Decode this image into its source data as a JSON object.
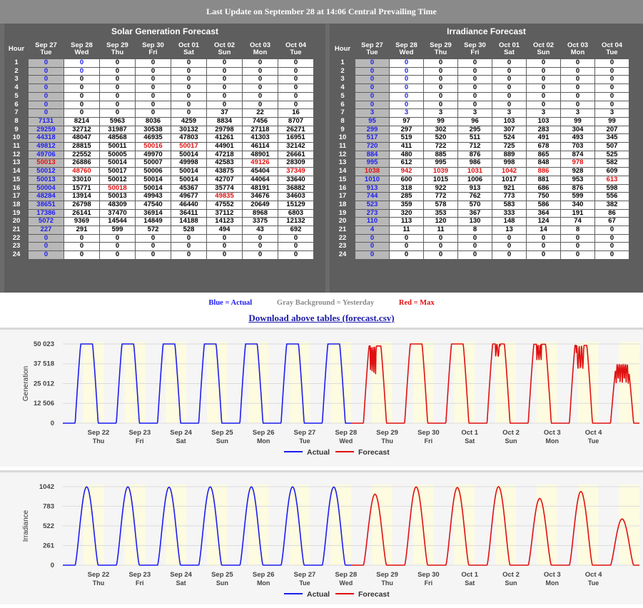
{
  "header": {
    "title": "Last Update on September 28 at 14:06 Central Prevailing Time"
  },
  "tables": {
    "generation": {
      "title": "Solar Generation Forecast",
      "hour_label": "Hour",
      "days": [
        {
          "date": "Sep 27",
          "dow": "Tue"
        },
        {
          "date": "Sep 28",
          "dow": "Wed"
        },
        {
          "date": "Sep 29",
          "dow": "Thu"
        },
        {
          "date": "Sep 30",
          "dow": "Fri"
        },
        {
          "date": "Oct 01",
          "dow": "Sat"
        },
        {
          "date": "Oct 02",
          "dow": "Sun"
        },
        {
          "date": "Oct 03",
          "dow": "Mon"
        },
        {
          "date": "Oct 04",
          "dow": "Tue"
        }
      ],
      "rows": [
        [
          "0",
          "0",
          "0",
          "0",
          "0",
          "0",
          "0",
          "0"
        ],
        [
          "0",
          "0",
          "0",
          "0",
          "0",
          "0",
          "0",
          "0"
        ],
        [
          "0",
          "0",
          "0",
          "0",
          "0",
          "0",
          "0",
          "0"
        ],
        [
          "0",
          "0",
          "0",
          "0",
          "0",
          "0",
          "0",
          "0"
        ],
        [
          "0",
          "0",
          "0",
          "0",
          "0",
          "0",
          "0",
          "0"
        ],
        [
          "0",
          "0",
          "0",
          "0",
          "0",
          "0",
          "0",
          "0"
        ],
        [
          "0",
          "0",
          "0",
          "0",
          "0",
          "37",
          "22",
          "16"
        ],
        [
          "7131",
          "8214",
          "5963",
          "8036",
          "4259",
          "8834",
          "7456",
          "8707"
        ],
        [
          "29259",
          "32712",
          "31987",
          "30538",
          "30132",
          "29798",
          "27118",
          "26271"
        ],
        [
          "44318",
          "48047",
          "48568",
          "46935",
          "47803",
          "41261",
          "41303",
          "16951"
        ],
        [
          "49812",
          "28815",
          "50011",
          "50016",
          "50017",
          "44901",
          "46114",
          "32142"
        ],
        [
          "49706",
          "22552",
          "50005",
          "49970",
          "50014",
          "47218",
          "48901",
          "26661"
        ],
        [
          "50013",
          "26886",
          "50014",
          "50007",
          "49998",
          "42583",
          "49126",
          "28309"
        ],
        [
          "50012",
          "48760",
          "50017",
          "50006",
          "50014",
          "43875",
          "45404",
          "37349"
        ],
        [
          "50013",
          "33010",
          "50012",
          "50014",
          "50014",
          "42707",
          "44064",
          "33640"
        ],
        [
          "50004",
          "15771",
          "50018",
          "50014",
          "45367",
          "35774",
          "48191",
          "36882"
        ],
        [
          "48284",
          "13914",
          "50013",
          "49943",
          "49677",
          "49835",
          "34676",
          "34603"
        ],
        [
          "38651",
          "26798",
          "48309",
          "47540",
          "46440",
          "47552",
          "20649",
          "15129"
        ],
        [
          "17386",
          "26141",
          "37470",
          "36914",
          "36411",
          "37112",
          "8968",
          "6803"
        ],
        [
          "5072",
          "9369",
          "14544",
          "14849",
          "14188",
          "14123",
          "3375",
          "12132"
        ],
        [
          "227",
          "291",
          "599",
          "572",
          "528",
          "494",
          "43",
          "692"
        ],
        [
          "0",
          "0",
          "0",
          "0",
          "0",
          "0",
          "0",
          "0"
        ],
        [
          "0",
          "0",
          "0",
          "0",
          "0",
          "0",
          "0",
          "0"
        ],
        [
          "0",
          "0",
          "0",
          "0",
          "0",
          "0",
          "0",
          "0"
        ]
      ],
      "actual_rows_day2": 2,
      "max_cells": [
        [
          12,
          0
        ],
        [
          13,
          1
        ],
        [
          15,
          2
        ],
        [
          10,
          3
        ],
        [
          10,
          4
        ],
        [
          16,
          5
        ],
        [
          12,
          6
        ],
        [
          13,
          7
        ]
      ]
    },
    "irradiance": {
      "title": "Irradiance Forecast",
      "hour_label": "Hour",
      "days": [
        {
          "date": "Sep 27",
          "dow": "Tue"
        },
        {
          "date": "Sep 28",
          "dow": "Wed"
        },
        {
          "date": "Sep 29",
          "dow": "Thu"
        },
        {
          "date": "Sep 30",
          "dow": "Fri"
        },
        {
          "date": "Oct 01",
          "dow": "Sat"
        },
        {
          "date": "Oct 02",
          "dow": "Sun"
        },
        {
          "date": "Oct 03",
          "dow": "Mon"
        },
        {
          "date": "Oct 04",
          "dow": "Tue"
        }
      ],
      "rows": [
        [
          "0",
          "0",
          "0",
          "0",
          "0",
          "0",
          "0",
          "0"
        ],
        [
          "0",
          "0",
          "0",
          "0",
          "0",
          "0",
          "0",
          "0"
        ],
        [
          "0",
          "0",
          "0",
          "0",
          "0",
          "0",
          "0",
          "0"
        ],
        [
          "0",
          "0",
          "0",
          "0",
          "0",
          "0",
          "0",
          "0"
        ],
        [
          "0",
          "0",
          "0",
          "0",
          "0",
          "0",
          "0",
          "0"
        ],
        [
          "0",
          "0",
          "0",
          "0",
          "0",
          "0",
          "0",
          "0"
        ],
        [
          "3",
          "3",
          "3",
          "3",
          "3",
          "3",
          "3",
          "3"
        ],
        [
          "95",
          "97",
          "99",
          "96",
          "103",
          "103",
          "99",
          "99"
        ],
        [
          "299",
          "297",
          "302",
          "295",
          "307",
          "283",
          "304",
          "207"
        ],
        [
          "517",
          "519",
          "520",
          "511",
          "524",
          "491",
          "493",
          "345"
        ],
        [
          "720",
          "411",
          "722",
          "712",
          "725",
          "678",
          "703",
          "507"
        ],
        [
          "884",
          "480",
          "885",
          "876",
          "889",
          "865",
          "874",
          "525"
        ],
        [
          "995",
          "612",
          "995",
          "986",
          "998",
          "848",
          "978",
          "582"
        ],
        [
          "1038",
          "942",
          "1039",
          "1031",
          "1042",
          "886",
          "928",
          "609"
        ],
        [
          "1010",
          "600",
          "1015",
          "1006",
          "1017",
          "881",
          "953",
          "613"
        ],
        [
          "913",
          "318",
          "922",
          "913",
          "921",
          "686",
          "876",
          "598"
        ],
        [
          "744",
          "285",
          "772",
          "762",
          "773",
          "750",
          "599",
          "556"
        ],
        [
          "523",
          "359",
          "578",
          "570",
          "583",
          "586",
          "340",
          "382"
        ],
        [
          "273",
          "320",
          "353",
          "367",
          "333",
          "364",
          "191",
          "86"
        ],
        [
          "110",
          "113",
          "120",
          "130",
          "148",
          "124",
          "74",
          "67"
        ],
        [
          "4",
          "11",
          "11",
          "8",
          "13",
          "14",
          "8",
          "0"
        ],
        [
          "0",
          "0",
          "0",
          "0",
          "0",
          "0",
          "0",
          "0"
        ],
        [
          "0",
          "0",
          "0",
          "0",
          "0",
          "0",
          "0",
          "0"
        ],
        [
          "0",
          "0",
          "0",
          "0",
          "0",
          "0",
          "0",
          "0"
        ]
      ],
      "actual_rows_day2": 7,
      "max_cells": [
        [
          13,
          0
        ],
        [
          13,
          1
        ],
        [
          13,
          2
        ],
        [
          13,
          3
        ],
        [
          13,
          4
        ],
        [
          13,
          5
        ],
        [
          12,
          6
        ],
        [
          14,
          7
        ]
      ]
    }
  },
  "legend": {
    "blue": "Blue = Actual",
    "gray": "Gray Background = Yesterday",
    "red": "Red = Max"
  },
  "download": {
    "label": "Download above tables (forecast.csv)"
  },
  "colors": {
    "actual": "#1d1df0",
    "forecast": "#e01010",
    "day_band": "#fdfbe0"
  },
  "chart_data": [
    {
      "type": "line",
      "ylabel": "Generation",
      "yticks": [
        0,
        12506,
        25012,
        37518,
        50023
      ],
      "ytick_labels": [
        "0",
        "12 506",
        "25 012",
        "37 518",
        "50 023"
      ],
      "ylim": [
        0,
        50023
      ],
      "x_ticks": [
        {
          "date": "Sep 22",
          "dow": "Thu"
        },
        {
          "date": "Sep 23",
          "dow": "Fri"
        },
        {
          "date": "Sep 24",
          "dow": "Sat"
        },
        {
          "date": "Sep 25",
          "dow": "Sun"
        },
        {
          "date": "Sep 26",
          "dow": "Mon"
        },
        {
          "date": "Sep 27",
          "dow": "Tue"
        },
        {
          "date": "Sep 28",
          "dow": "Wed"
        },
        {
          "date": "Sep 29",
          "dow": "Thu"
        },
        {
          "date": "Sep 30",
          "dow": "Fri"
        },
        {
          "date": "Oct 1",
          "dow": "Sat"
        },
        {
          "date": "Oct 2",
          "dow": "Sun"
        },
        {
          "date": "Oct 3",
          "dow": "Mon"
        },
        {
          "date": "Oct 4",
          "dow": "Tue"
        }
      ],
      "series": [
        {
          "name": "Actual",
          "daily_peaks": [
            50023,
            50023,
            50023,
            50023,
            50023,
            50023,
            50023
          ]
        },
        {
          "name": "Forecast",
          "daily_peaks": [
            48760,
            50018,
            50016,
            50017,
            49835,
            49126,
            37349
          ]
        }
      ]
    },
    {
      "type": "line",
      "ylabel": "Irradiance",
      "yticks": [
        0,
        261,
        522,
        783,
        1042
      ],
      "ytick_labels": [
        "0",
        "261",
        "522",
        "783",
        "1042"
      ],
      "ylim": [
        0,
        1042
      ],
      "x_ticks": [
        {
          "date": "Sep 22",
          "dow": "Thu"
        },
        {
          "date": "Sep 23",
          "dow": "Fri"
        },
        {
          "date": "Sep 24",
          "dow": "Sat"
        },
        {
          "date": "Sep 25",
          "dow": "Sun"
        },
        {
          "date": "Sep 26",
          "dow": "Mon"
        },
        {
          "date": "Sep 27",
          "dow": "Tue"
        },
        {
          "date": "Sep 28",
          "dow": "Wed"
        },
        {
          "date": "Sep 29",
          "dow": "Thu"
        },
        {
          "date": "Sep 30",
          "dow": "Fri"
        },
        {
          "date": "Oct 1",
          "dow": "Sat"
        },
        {
          "date": "Oct 2",
          "dow": "Sun"
        },
        {
          "date": "Oct 3",
          "dow": "Mon"
        },
        {
          "date": "Oct 4",
          "dow": "Tue"
        }
      ],
      "series": [
        {
          "name": "Actual",
          "daily_peaks": [
            1040,
            1040,
            1035,
            1040,
            1040,
            1040,
            1038
          ]
        },
        {
          "name": "Forecast",
          "daily_peaks": [
            942,
            1039,
            1031,
            1042,
            886,
            978,
            613
          ]
        }
      ]
    }
  ]
}
